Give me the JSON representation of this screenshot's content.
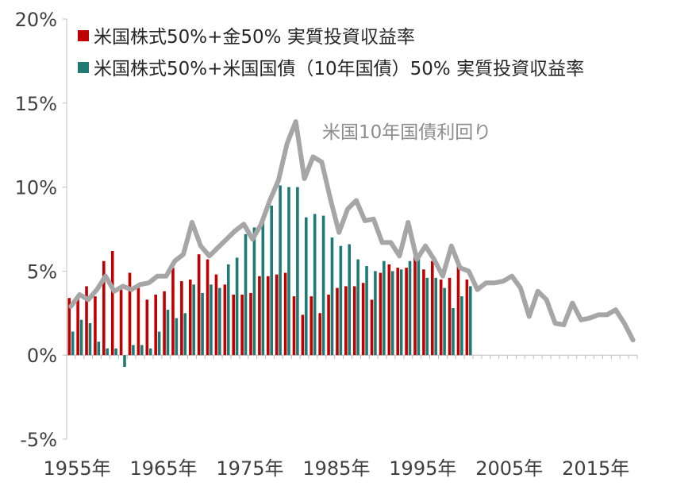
{
  "chart_data": {
    "type": "bar",
    "title": "",
    "xlabel": "",
    "ylabel": "",
    "ylim": [
      -5,
      20
    ],
    "yticks": [
      "20%",
      "15%",
      "10%",
      "5%",
      "0%",
      "-5%"
    ],
    "ytick_values": [
      20,
      15,
      10,
      5,
      0,
      -5
    ],
    "xtick_labels": [
      "1955年",
      "1965年",
      "1975年",
      "1985年",
      "1995年",
      "2005年",
      "2015年"
    ],
    "xtick_years": [
      1955,
      1965,
      1975,
      1985,
      1995,
      2005,
      2015
    ],
    "year_range": [
      1955,
      2020
    ],
    "legend_placement": "top-left",
    "grid": false,
    "series": [
      {
        "name": "米国株式50%+金50% 実質投資収益率",
        "kind": "bar",
        "color": "#c00000",
        "x": [
          1955,
          1956,
          1957,
          1958,
          1959,
          1960,
          1961,
          1962,
          1963,
          1964,
          1965,
          1966,
          1967,
          1968,
          1969,
          1970,
          1971,
          1972,
          1973,
          1974,
          1975,
          1976,
          1977,
          1978,
          1979,
          1980,
          1981,
          1982,
          1983,
          1984,
          1985,
          1986,
          1987,
          1988,
          1989,
          1990,
          1991,
          1992,
          1993,
          1994,
          1995,
          1996,
          1997,
          1998,
          1999,
          2000,
          2001
        ],
        "values": [
          3.4,
          3.6,
          4.1,
          3.5,
          5.6,
          6.2,
          3.9,
          4.9,
          4.0,
          3.3,
          3.6,
          3.8,
          5.2,
          4.4,
          4.5,
          6.0,
          5.7,
          4.8,
          4.2,
          3.6,
          3.6,
          3.7,
          4.7,
          4.7,
          4.8,
          4.9,
          3.5,
          2.4,
          3.5,
          2.5,
          3.6,
          4.0,
          4.1,
          4.1,
          4.3,
          3.3,
          4.9,
          5.4,
          5.2,
          5.2,
          5.9,
          5.1,
          5.6,
          4.5,
          4.6,
          5.3,
          4.5
        ]
      },
      {
        "name": "米国株式50%+米国国債（10年国債）50% 実質投資収益率",
        "kind": "bar",
        "color": "#1f7a74",
        "x": [
          1955,
          1956,
          1957,
          1958,
          1959,
          1960,
          1961,
          1962,
          1963,
          1964,
          1965,
          1966,
          1967,
          1968,
          1969,
          1970,
          1971,
          1972,
          1973,
          1974,
          1975,
          1976,
          1977,
          1978,
          1979,
          1980,
          1981,
          1982,
          1983,
          1984,
          1985,
          1986,
          1987,
          1988,
          1989,
          1990,
          1991,
          1992,
          1993,
          1994,
          1995,
          1996,
          1997,
          1998,
          1999,
          2000,
          2001
        ],
        "values": [
          1.4,
          2.1,
          1.9,
          0.8,
          0.4,
          0.4,
          -0.7,
          0.6,
          0.6,
          0.4,
          1.4,
          2.7,
          2.2,
          2.5,
          4.2,
          3.7,
          4.2,
          4.0,
          5.4,
          5.8,
          7.2,
          7.6,
          7.9,
          8.9,
          10.1,
          10.0,
          10.0,
          8.2,
          8.4,
          8.3,
          7.0,
          6.5,
          6.6,
          5.7,
          5.3,
          5.0,
          5.6,
          5.0,
          5.1,
          5.6,
          6.0,
          4.6,
          4.6,
          4.0,
          2.8,
          3.5,
          4.1
        ]
      },
      {
        "name": "",
        "kind": "line",
        "color": "#a6a6a6",
        "x": [
          1955,
          1956,
          1957,
          1958,
          1959,
          1960,
          1961,
          1962,
          1963,
          1964,
          1965,
          1966,
          1967,
          1968,
          1969,
          1970,
          1971,
          1972,
          1973,
          1974,
          1975,
          1976,
          1977,
          1978,
          1979,
          1980,
          1981,
          1982,
          1983,
          1984,
          1985,
          1986,
          1987,
          1988,
          1989,
          1990,
          1991,
          1992,
          1993,
          1994,
          1995,
          1996,
          1997,
          1998,
          1999,
          2000,
          2001,
          2002,
          2003,
          2004,
          2005,
          2006,
          2007,
          2008,
          2009,
          2010,
          2011,
          2012,
          2013,
          2014,
          2015,
          2016,
          2017,
          2018,
          2019,
          2020
        ],
        "values": [
          2.9,
          3.6,
          3.3,
          3.9,
          4.7,
          3.8,
          4.1,
          3.9,
          4.2,
          4.3,
          4.7,
          4.7,
          5.6,
          6.0,
          7.9,
          6.5,
          5.9,
          6.4,
          6.9,
          7.4,
          7.8,
          6.9,
          7.8,
          9.2,
          10.4,
          12.6,
          13.9,
          10.5,
          11.8,
          11.5,
          9.3,
          7.3,
          8.7,
          9.2,
          8.0,
          8.1,
          6.7,
          6.7,
          5.9,
          7.9,
          5.7,
          6.5,
          5.7,
          4.7,
          6.5,
          5.2,
          5.0,
          3.9,
          4.3,
          4.3,
          4.4,
          4.7,
          4.0,
          2.3,
          3.8,
          3.3,
          1.9,
          1.8,
          3.1,
          2.1,
          2.2,
          2.4,
          2.4,
          2.7,
          1.9,
          0.9
        ]
      }
    ],
    "annotation": "米国10年国債利回り"
  }
}
